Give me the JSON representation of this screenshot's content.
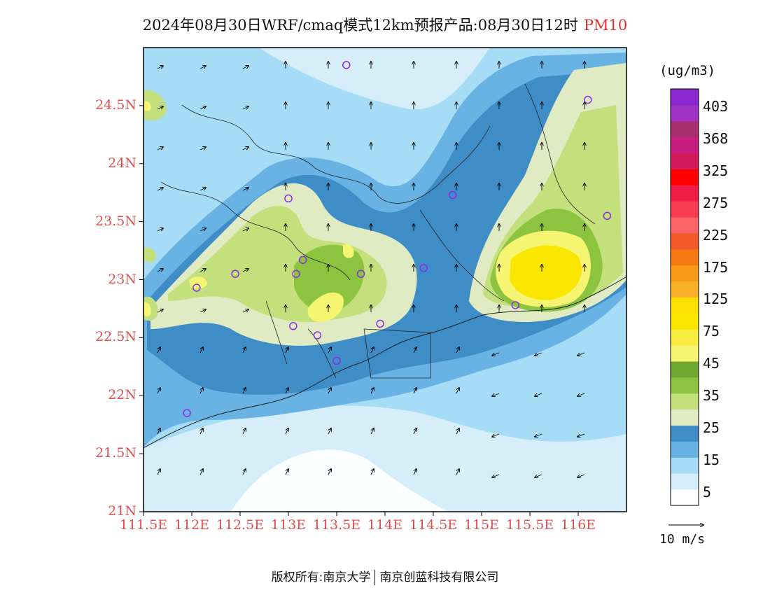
{
  "title": {
    "main": "2024年08月30日WRF/cmaq模式12km预报产品:08月30日12时",
    "variable": "PM10"
  },
  "axes": {
    "lat_ticks": [
      "24.5N",
      "24N",
      "23.5N",
      "23N",
      "22.5N",
      "22N",
      "21.5N",
      "21N"
    ],
    "lon_ticks": [
      "111.5E",
      "112E",
      "112.5E",
      "113E",
      "113.5E",
      "114E",
      "114.5E",
      "115E",
      "115.5E",
      "116E"
    ],
    "lon_range": [
      111.5,
      116.5
    ],
    "lat_range": [
      21.0,
      25.0
    ]
  },
  "colorbar": {
    "unit": "(ug/m3)",
    "labels": [
      "403",
      "368",
      "325",
      "275",
      "225",
      "175",
      "125",
      "75",
      "45",
      "35",
      "25",
      "15",
      "5"
    ],
    "colors": [
      "#ffffff",
      "#d6eefa",
      "#a6dcf5",
      "#68b3e3",
      "#3f8dc6",
      "#e0ebc4",
      "#c4e07c",
      "#8cc440",
      "#6ea833",
      "#f5f572",
      "#f7ed40",
      "#fae600",
      "#fde100",
      "#fbb029",
      "#fb9a14",
      "#f57a14",
      "#f25a2a",
      "#fa6464",
      "#f53c50",
      "#f01c46",
      "#ff0000",
      "#d21a5a",
      "#c81e82",
      "#aa2d6e",
      "#a032c8",
      "#8c28d2"
    ]
  },
  "wind_reference": "10 m/s",
  "footer": {
    "left": "版权所有:南京大学",
    "right": "南京创蓝科技有限公司"
  },
  "stations": [
    {
      "lon": 113.6,
      "lat": 24.85
    },
    {
      "lon": 116.1,
      "lat": 24.55
    },
    {
      "lon": 113.0,
      "lat": 23.7
    },
    {
      "lon": 114.7,
      "lat": 23.73
    },
    {
      "lon": 116.3,
      "lat": 23.55
    },
    {
      "lon": 113.15,
      "lat": 23.17
    },
    {
      "lon": 113.08,
      "lat": 23.05
    },
    {
      "lon": 113.75,
      "lat": 23.05
    },
    {
      "lon": 114.4,
      "lat": 23.1
    },
    {
      "lon": 112.45,
      "lat": 23.05
    },
    {
      "lon": 112.05,
      "lat": 22.93
    },
    {
      "lon": 115.35,
      "lat": 22.78
    },
    {
      "lon": 113.05,
      "lat": 22.6
    },
    {
      "lon": 113.3,
      "lat": 22.52
    },
    {
      "lon": 113.95,
      "lat": 22.62
    },
    {
      "lon": 113.5,
      "lat": 22.3
    },
    {
      "lon": 111.95,
      "lat": 21.85
    }
  ]
}
